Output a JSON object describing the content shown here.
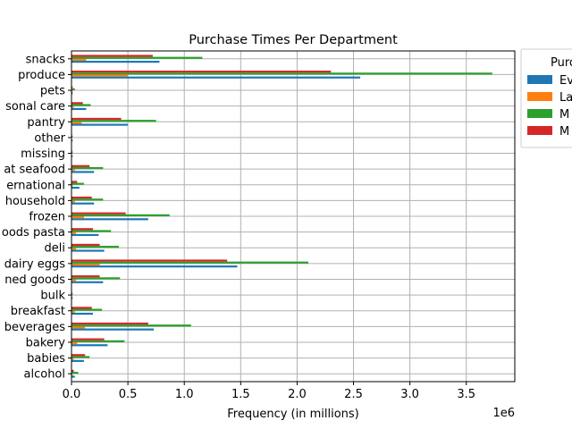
{
  "chart_data": {
    "type": "bar",
    "orientation": "horizontal",
    "title": "Purchase Times Per Department",
    "xlabel": "Frequency (in millions)",
    "ylabel": "",
    "x_offset_label": "1e6",
    "xlim": [
      0,
      3.93
    ],
    "xticks": [
      "0.0",
      "0.5",
      "1.0",
      "1.5",
      "2.0",
      "2.5",
      "3.0",
      "3.5"
    ],
    "grid": true,
    "legend": {
      "title": "Purc",
      "placement": "outside-upper-right",
      "entries": [
        "Ev",
        "La",
        "M",
        "M"
      ]
    },
    "categories": [
      "alcohol",
      "babies",
      "bakery",
      "beverages",
      "breakfast",
      "bulk",
      "ned goods",
      "dairy eggs",
      "deli",
      "oods pasta",
      "frozen",
      "household",
      "ernational",
      "at seafood",
      "missing",
      "other",
      "pantry",
      "sonal care",
      "pets",
      "produce",
      "snacks"
    ],
    "series": [
      {
        "name": "Ev",
        "color": "#1f77b4",
        "values": [
          0.03,
          0.11,
          0.32,
          0.73,
          0.19,
          0.01,
          0.28,
          1.47,
          0.29,
          0.24,
          0.68,
          0.2,
          0.07,
          0.2,
          0.01,
          0.01,
          0.5,
          0.13,
          0.01,
          2.56,
          0.78
        ]
      },
      {
        "name": "La",
        "color": "#ff7f0e",
        "values": [
          0.01,
          0.02,
          0.05,
          0.12,
          0.03,
          0.002,
          0.04,
          0.25,
          0.04,
          0.04,
          0.11,
          0.03,
          0.01,
          0.03,
          0.002,
          0.002,
          0.09,
          0.02,
          0.01,
          0.5,
          0.13
        ]
      },
      {
        "name": "M",
        "color": "#2ca02c",
        "values": [
          0.06,
          0.16,
          0.47,
          1.06,
          0.27,
          0.01,
          0.43,
          2.1,
          0.42,
          0.35,
          0.87,
          0.28,
          0.11,
          0.28,
          0.01,
          0.01,
          0.75,
          0.17,
          0.03,
          3.73,
          1.16
        ]
      },
      {
        "name": "M",
        "color": "#d62728",
        "values": [
          0.02,
          0.12,
          0.29,
          0.68,
          0.18,
          0.005,
          0.25,
          1.38,
          0.25,
          0.19,
          0.48,
          0.18,
          0.05,
          0.16,
          0.005,
          0.005,
          0.44,
          0.1,
          0.01,
          2.3,
          0.72
        ]
      }
    ]
  }
}
